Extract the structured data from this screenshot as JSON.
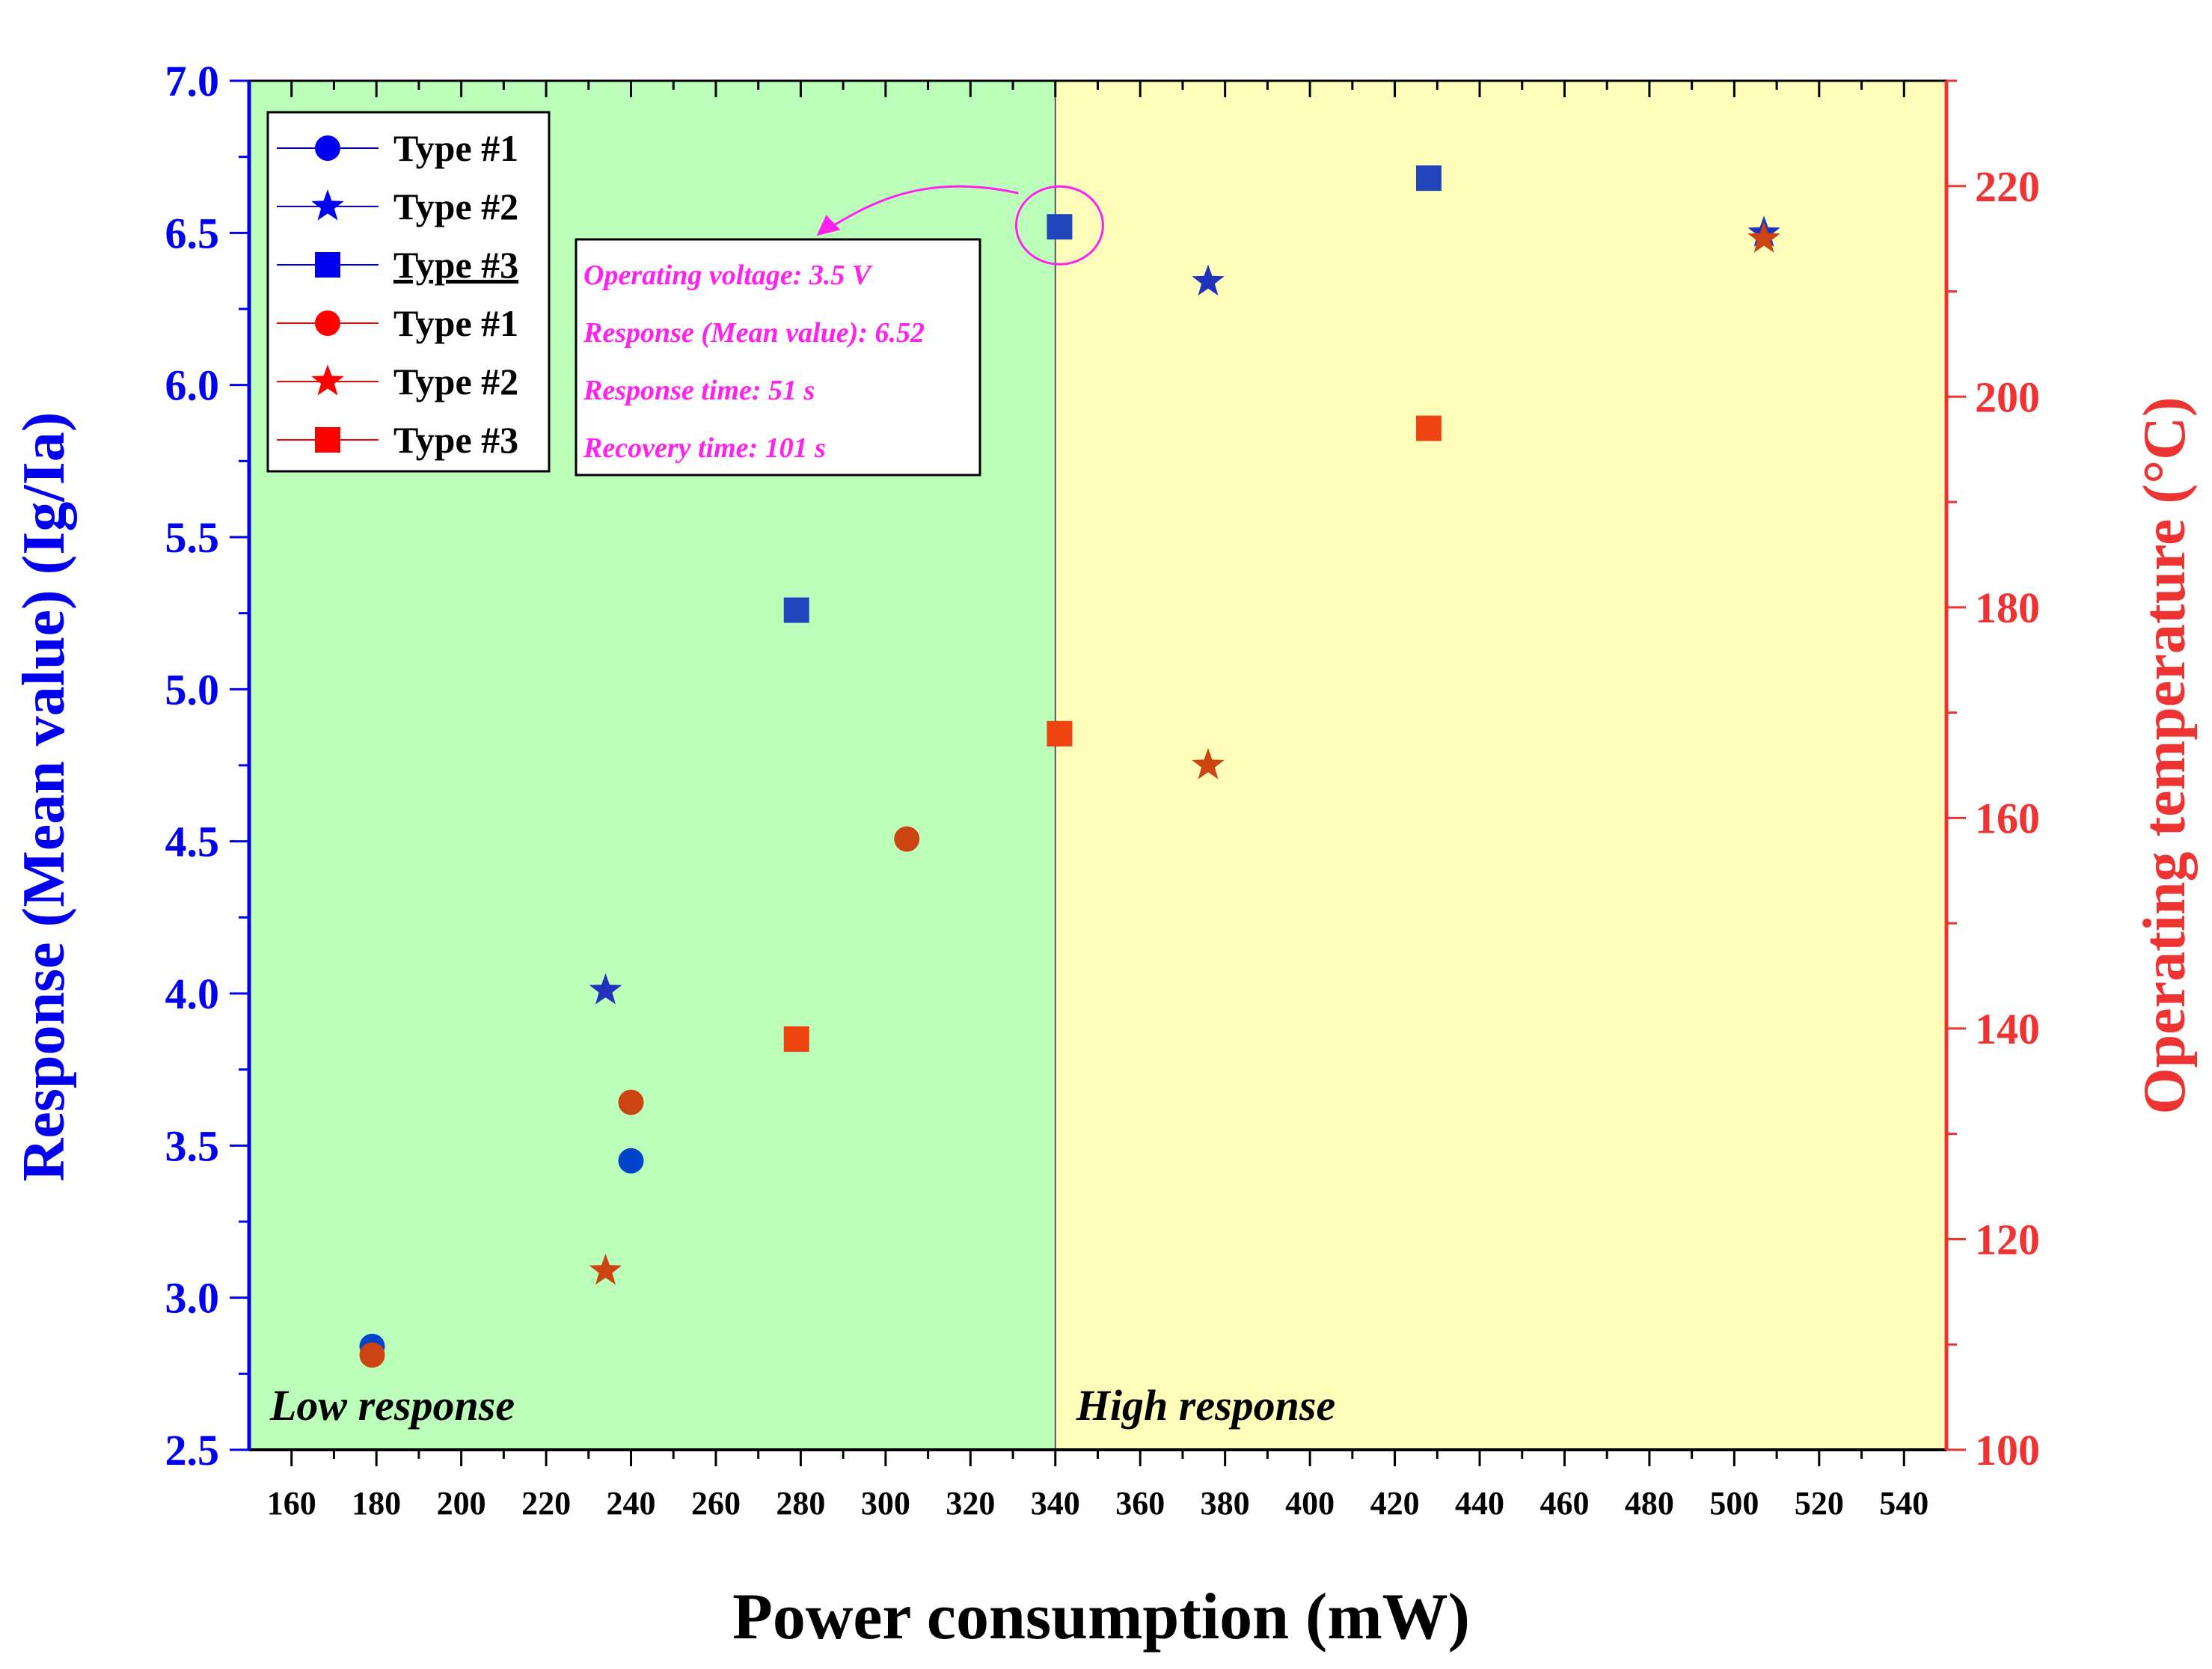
{
  "chart_data": {
    "type": "scatter",
    "title": "",
    "xlabel": "Power consumption (mW)",
    "ylabel_left": "Response (Mean value) (Ig/Ia)",
    "ylabel_right": "Operating temperature (°C)",
    "xlim": [
      150,
      550
    ],
    "ylim_left": [
      2.5,
      7.0
    ],
    "ylim_right": [
      100,
      230
    ],
    "x_ticks": [
      160,
      180,
      200,
      220,
      240,
      260,
      280,
      300,
      320,
      340,
      360,
      380,
      400,
      420,
      440,
      460,
      480,
      500,
      520,
      540
    ],
    "y_left_ticks": [
      2.5,
      3.0,
      3.5,
      4.0,
      4.5,
      5.0,
      5.5,
      6.0,
      6.5,
      7.0
    ],
    "y_right_ticks": [
      100,
      120,
      140,
      160,
      180,
      200,
      220
    ],
    "colors": {
      "left_axis": "#0000ee",
      "right_axis": "#ee3333",
      "low_region": "#bbffbb",
      "high_region": "#ffffbb",
      "annotation": "#ff22ee"
    },
    "regions": [
      {
        "label": "Low response",
        "x_from": 150,
        "x_to": 340
      },
      {
        "label": "High response",
        "x_from": 340,
        "x_to": 550
      }
    ],
    "series": [
      {
        "name": "Type #1",
        "axis": "left",
        "marker": "circle",
        "color": "#0044cc",
        "x": [
          179,
          240
        ],
        "y": [
          2.84,
          3.45
        ]
      },
      {
        "name": "Type #2",
        "axis": "left",
        "marker": "star",
        "color": "#2233bb",
        "x": [
          234,
          376,
          507
        ],
        "y": [
          4.01,
          6.34,
          6.5
        ]
      },
      {
        "name": "Type #3",
        "axis": "left",
        "marker": "square",
        "color": "#2244bb",
        "x": [
          279,
          341,
          428
        ],
        "y": [
          5.26,
          6.52,
          6.68
        ]
      },
      {
        "name": "Type #1",
        "axis": "right",
        "marker": "circle",
        "color": "#cc4411",
        "x": [
          179,
          240,
          305
        ],
        "y": [
          109,
          133,
          158
        ]
      },
      {
        "name": "Type #2",
        "axis": "right",
        "marker": "star",
        "color": "#cc4411",
        "x": [
          234,
          376,
          507
        ],
        "y": [
          117,
          165,
          215
        ]
      },
      {
        "name": "Type #3",
        "axis": "right",
        "marker": "square",
        "color": "#ee4411",
        "x": [
          279,
          341,
          428
        ],
        "y": [
          139,
          168,
          197
        ]
      }
    ],
    "legend": {
      "placement": "top-left",
      "entries": [
        {
          "label": "Type #1",
          "marker": "circle",
          "color": "#0000ee"
        },
        {
          "label": "Type #2",
          "marker": "star",
          "color": "#0000ee"
        },
        {
          "label": "Type #3",
          "marker": "square",
          "color": "#0000ee",
          "highlight": true
        },
        {
          "label": "Type #1",
          "marker": "circle",
          "color": "#ff0000"
        },
        {
          "label": "Type #2",
          "marker": "star",
          "color": "#ff0000"
        },
        {
          "label": "Type #3",
          "marker": "square",
          "color": "#ff0000"
        }
      ]
    },
    "annotation": {
      "target_x": 341,
      "target_y": 6.52,
      "lines": [
        "Operating voltage: 3.5 V",
        "Response (Mean value): 6.52",
        "Response time: 51 s",
        "Recovery time: 101 s"
      ]
    }
  }
}
